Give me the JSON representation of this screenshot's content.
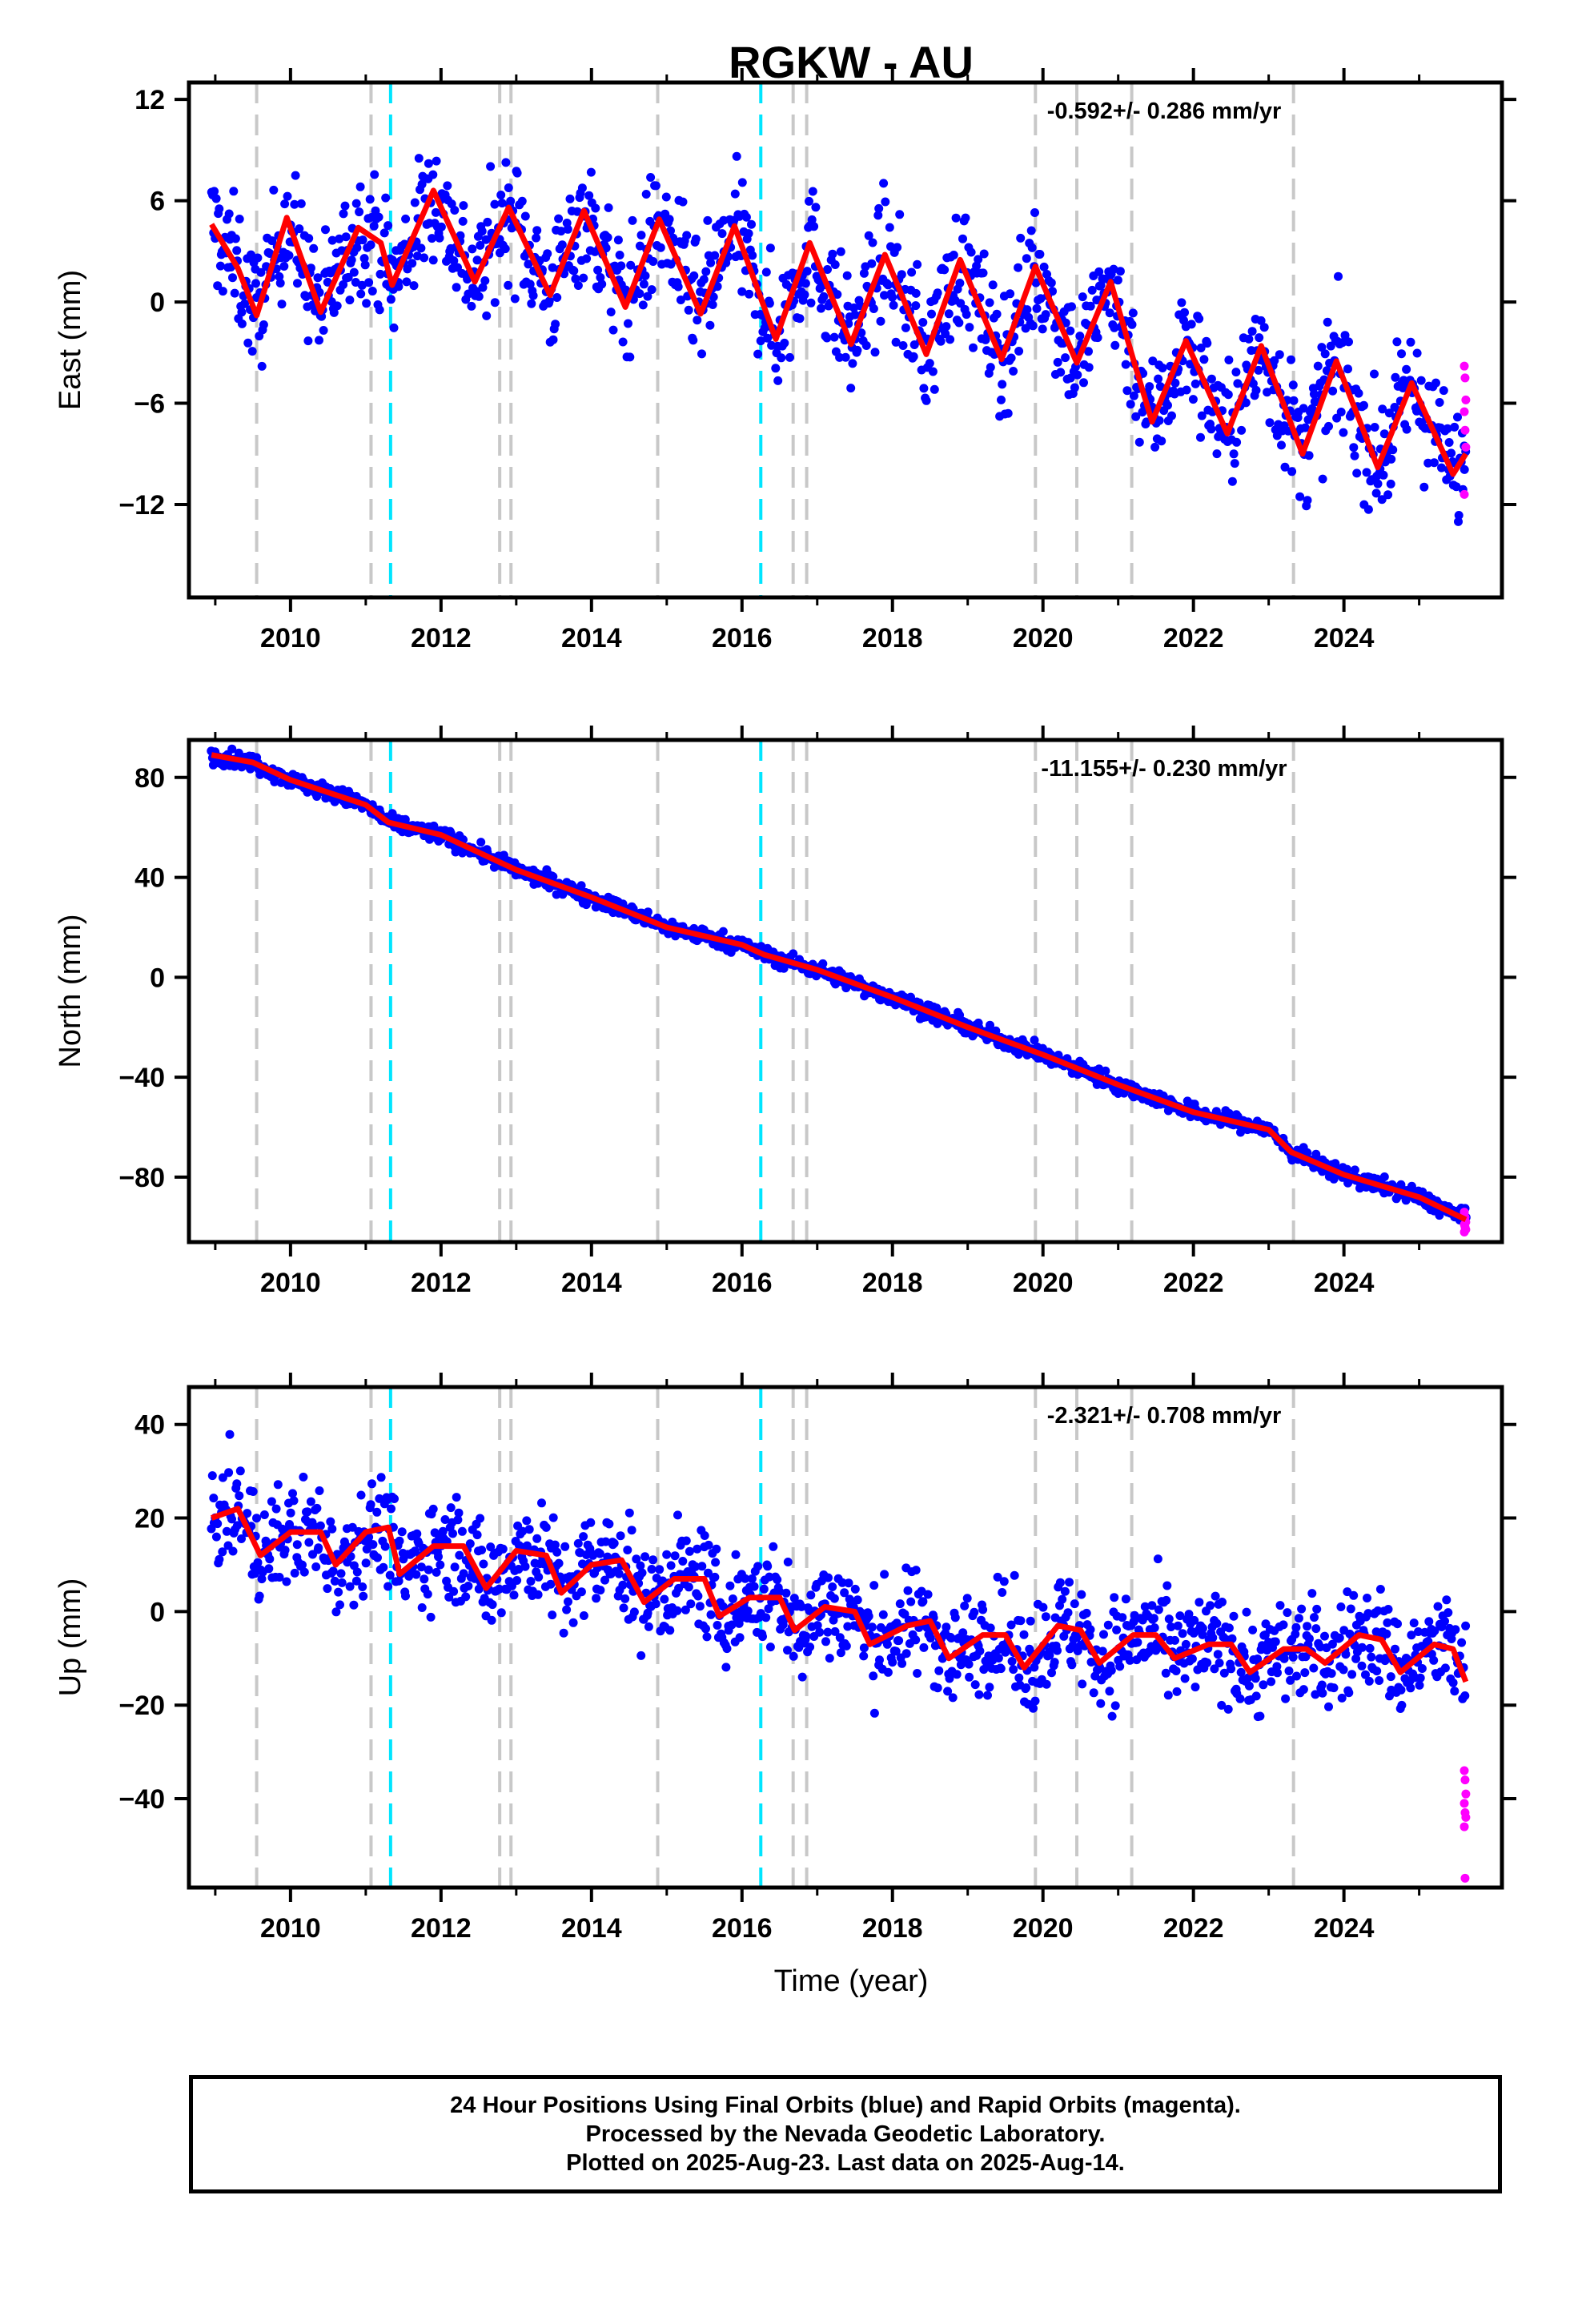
{
  "figure": {
    "title": "RGKW - AU",
    "xlabel": "Time (year)"
  },
  "colors": {
    "final_orbits": "#0000ff",
    "rapid_orbits": "#ff00ff",
    "model_fit": "#ff0000",
    "antenna_change": "#c8c8c8",
    "earthquake": "#00e5ff"
  },
  "chart_data": [
    {
      "type": "scatter",
      "name": "East",
      "ylabel": "East (mm)",
      "rate_label": "-0.592+/- 0.286 mm/yr",
      "xlim": [
        2008.65,
        2026.1
      ],
      "ylim": [
        -17.5,
        13
      ],
      "x_ticks": [
        2010,
        2012,
        2014,
        2016,
        2018,
        2020,
        2022,
        2024
      ],
      "y_ticks": [
        12,
        6,
        0,
        -6,
        -12
      ],
      "data_range": [
        2008.95,
        2025.62
      ],
      "trend": {
        "start": 4.5,
        "end": -4.5
      },
      "seasonal_amp": 2.8,
      "offsets": [
        {
          "year": 2021.1,
          "size": -4.5
        }
      ],
      "noise": 1.8,
      "fit": [
        [
          2008.95,
          4.6
        ],
        [
          2009.3,
          2.0
        ],
        [
          2009.55,
          -0.8
        ],
        [
          2009.95,
          5.0
        ],
        [
          2010.4,
          -0.6
        ],
        [
          2010.9,
          4.4
        ],
        [
          2011.2,
          3.5
        ],
        [
          2011.35,
          1.0
        ],
        [
          2011.9,
          6.6
        ],
        [
          2012.45,
          1.2
        ],
        [
          2012.9,
          5.6
        ],
        [
          2013.45,
          0.4
        ],
        [
          2013.9,
          5.4
        ],
        [
          2014.45,
          -0.3
        ],
        [
          2014.9,
          4.9
        ],
        [
          2015.45,
          -0.7
        ],
        [
          2015.9,
          4.5
        ],
        [
          2016.45,
          -2.2
        ],
        [
          2016.9,
          3.5
        ],
        [
          2017.45,
          -2.5
        ],
        [
          2017.9,
          2.8
        ],
        [
          2018.45,
          -3.1
        ],
        [
          2018.9,
          2.5
        ],
        [
          2019.45,
          -3.4
        ],
        [
          2019.9,
          2.1
        ],
        [
          2020.45,
          -3.6
        ],
        [
          2020.9,
          1.2
        ],
        [
          2021.2,
          -3.4
        ],
        [
          2021.45,
          -7.1
        ],
        [
          2021.9,
          -2.3
        ],
        [
          2022.45,
          -7.8
        ],
        [
          2022.9,
          -2.6
        ],
        [
          2023.45,
          -9.0
        ],
        [
          2023.9,
          -3.5
        ],
        [
          2024.45,
          -9.8
        ],
        [
          2024.9,
          -4.8
        ],
        [
          2025.45,
          -10.2
        ],
        [
          2025.62,
          -9.0
        ]
      ],
      "rapid_points": [
        [
          2025.6,
          -3.8
        ],
        [
          2025.61,
          -4.5
        ],
        [
          2025.62,
          -5.8
        ],
        [
          2025.6,
          -6.5
        ],
        [
          2025.61,
          -7.6
        ],
        [
          2025.62,
          -8.6
        ],
        [
          2025.6,
          -11.4
        ]
      ]
    },
    {
      "type": "scatter",
      "name": "North",
      "ylabel": "North (mm)",
      "rate_label": "-11.155+/- 0.230 mm/yr",
      "xlim": [
        2008.65,
        2026.1
      ],
      "ylim": [
        -106,
        95
      ],
      "x_ticks": [
        2010,
        2012,
        2014,
        2016,
        2018,
        2020,
        2022,
        2024
      ],
      "y_ticks": [
        80,
        40,
        0,
        -40,
        -80
      ],
      "data_range": [
        2008.95,
        2025.62
      ],
      "trend": {
        "start": 89,
        "end": -97
      },
      "seasonal_amp": 1.5,
      "offsets": [],
      "noise": 1.6,
      "fit": [
        [
          2008.95,
          89
        ],
        [
          2009.5,
          86
        ],
        [
          2010.0,
          79
        ],
        [
          2011.0,
          69
        ],
        [
          2011.3,
          62
        ],
        [
          2012.0,
          57
        ],
        [
          2013.0,
          43
        ],
        [
          2014.0,
          32
        ],
        [
          2015.0,
          20
        ],
        [
          2016.0,
          13
        ],
        [
          2016.3,
          9
        ],
        [
          2017.0,
          3
        ],
        [
          2018.0,
          -8
        ],
        [
          2019.0,
          -20
        ],
        [
          2020.0,
          -31
        ],
        [
          2021.0,
          -43
        ],
        [
          2022.0,
          -54
        ],
        [
          2023.0,
          -61
        ],
        [
          2023.3,
          -70
        ],
        [
          2024.0,
          -79
        ],
        [
          2025.0,
          -88
        ],
        [
          2025.62,
          -97
        ]
      ],
      "rapid_points": [
        [
          2025.6,
          -94
        ],
        [
          2025.61,
          -96
        ],
        [
          2025.62,
          -98
        ],
        [
          2025.6,
          -99
        ],
        [
          2025.61,
          -100
        ],
        [
          2025.62,
          -101
        ],
        [
          2025.6,
          -102
        ]
      ]
    },
    {
      "type": "scatter",
      "name": "Up",
      "ylabel": "Up (mm)",
      "rate_label": "-2.321+/- 0.708 mm/yr",
      "xlim": [
        2008.65,
        2026.1
      ],
      "ylim": [
        -59,
        48
      ],
      "x_ticks": [
        2010,
        2012,
        2014,
        2016,
        2018,
        2020,
        2022,
        2024
      ],
      "y_ticks": [
        40,
        20,
        0,
        -20,
        -40
      ],
      "data_range": [
        2008.95,
        2025.62
      ],
      "trend": {
        "start": 18,
        "end": -10
      },
      "seasonal_amp": 4.0,
      "offsets": [],
      "noise": 5.5,
      "fit": [
        [
          2008.95,
          20
        ],
        [
          2009.3,
          22
        ],
        [
          2009.6,
          12
        ],
        [
          2010.0,
          17
        ],
        [
          2010.4,
          17
        ],
        [
          2010.6,
          10
        ],
        [
          2011.0,
          17
        ],
        [
          2011.3,
          18
        ],
        [
          2011.45,
          8
        ],
        [
          2011.9,
          14
        ],
        [
          2012.3,
          14
        ],
        [
          2012.6,
          5
        ],
        [
          2013.0,
          13
        ],
        [
          2013.4,
          12
        ],
        [
          2013.6,
          4
        ],
        [
          2014.0,
          10
        ],
        [
          2014.4,
          11
        ],
        [
          2014.7,
          2
        ],
        [
          2015.1,
          7
        ],
        [
          2015.5,
          7
        ],
        [
          2015.7,
          -1
        ],
        [
          2016.1,
          3
        ],
        [
          2016.5,
          3
        ],
        [
          2016.7,
          -4
        ],
        [
          2017.1,
          1
        ],
        [
          2017.5,
          0
        ],
        [
          2017.7,
          -7
        ],
        [
          2018.2,
          -3
        ],
        [
          2018.5,
          -2
        ],
        [
          2018.75,
          -10
        ],
        [
          2019.2,
          -5
        ],
        [
          2019.5,
          -5
        ],
        [
          2019.75,
          -12
        ],
        [
          2020.2,
          -3
        ],
        [
          2020.5,
          -4
        ],
        [
          2020.75,
          -11
        ],
        [
          2021.2,
          -5
        ],
        [
          2021.5,
          -5
        ],
        [
          2021.75,
          -10
        ],
        [
          2022.2,
          -7
        ],
        [
          2022.5,
          -7
        ],
        [
          2022.75,
          -13
        ],
        [
          2023.2,
          -8
        ],
        [
          2023.5,
          -8
        ],
        [
          2023.75,
          -11
        ],
        [
          2024.2,
          -5
        ],
        [
          2024.5,
          -6
        ],
        [
          2024.75,
          -13
        ],
        [
          2025.2,
          -7
        ],
        [
          2025.45,
          -8
        ],
        [
          2025.62,
          -15
        ]
      ],
      "rapid_points": [
        [
          2025.6,
          -34
        ],
        [
          2025.61,
          -36
        ],
        [
          2025.62,
          -39
        ],
        [
          2025.6,
          -41
        ],
        [
          2025.61,
          -43
        ],
        [
          2025.62,
          -44
        ],
        [
          2025.6,
          -46
        ],
        [
          2025.61,
          -57
        ]
      ]
    }
  ],
  "events": {
    "antenna_changes": [
      2009.55,
      2011.07,
      2012.78,
      2012.93,
      2014.88,
      2016.68,
      2016.86,
      2019.9,
      2020.45,
      2021.18,
      2023.33
    ],
    "earthquakes": [
      2011.33,
      2016.25
    ]
  },
  "footer": {
    "line1": "24 Hour Positions Using Final Orbits (blue) and Rapid Orbits (magenta).",
    "line2": "Processed by the Nevada Geodetic Laboratory.",
    "line3": "Plotted on 2025-Aug-23. Last data on 2025-Aug-14."
  }
}
